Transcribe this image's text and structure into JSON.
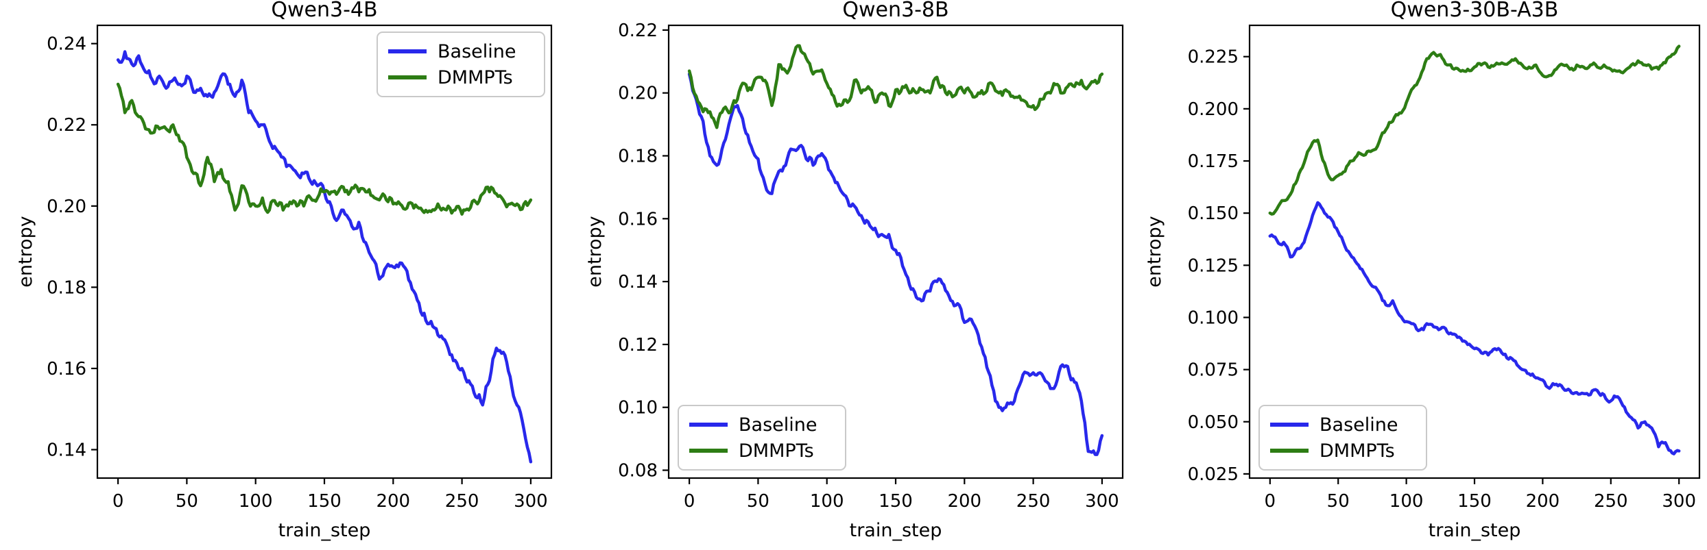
{
  "figure": {
    "background": "#ffffff",
    "description": "Three entropy-vs-train_step line charts comparing Baseline and DMMPTs"
  },
  "colors": {
    "baseline": "#2828eb",
    "dmmpts": "#2d7d14",
    "axis": "#000000",
    "tick_text": "#000000",
    "legend_border": "#c9c9c9",
    "legend_fill": "#ffffff"
  },
  "chart_data": [
    {
      "type": "line",
      "title": "Qwen3-4B",
      "xlabel": "train_step",
      "ylabel": "entropy",
      "grid": false,
      "legend_position": "top-right",
      "xlim": [
        -15,
        315
      ],
      "ylim": [
        0.133,
        0.2445
      ],
      "xticks": [
        0,
        50,
        100,
        150,
        200,
        250,
        300
      ],
      "yticks": [
        "0.14",
        "0.16",
        "0.18",
        "0.20",
        "0.22",
        "0.24"
      ],
      "x_start": 0,
      "x_step": 5,
      "series": [
        {
          "name": "Baseline",
          "color_key": "baseline",
          "values": [
            0.236,
            0.238,
            0.235,
            0.237,
            0.233,
            0.231,
            0.232,
            0.229,
            0.231,
            0.23,
            0.232,
            0.228,
            0.229,
            0.227,
            0.228,
            0.232,
            0.23,
            0.227,
            0.231,
            0.223,
            0.221,
            0.22,
            0.216,
            0.214,
            0.212,
            0.21,
            0.208,
            0.208,
            0.206,
            0.205,
            0.2035,
            0.2,
            0.197,
            0.198,
            0.195,
            0.196,
            0.191,
            0.187,
            0.182,
            0.185,
            0.185,
            0.186,
            0.184,
            0.179,
            0.174,
            0.171,
            0.17,
            0.168,
            0.165,
            0.162,
            0.16,
            0.157,
            0.153,
            0.151,
            0.157,
            0.165,
            0.164,
            0.158,
            0.151,
            0.145,
            0.137
          ]
        },
        {
          "name": "DMMPTs",
          "color_key": "dmmpts",
          "values": [
            0.23,
            0.223,
            0.226,
            0.222,
            0.219,
            0.218,
            0.219,
            0.219,
            0.22,
            0.216,
            0.212,
            0.208,
            0.205,
            0.212,
            0.206,
            0.209,
            0.206,
            0.199,
            0.205,
            0.201,
            0.2,
            0.202,
            0.199,
            0.2005,
            0.199,
            0.201,
            0.2,
            0.2,
            0.202,
            0.202,
            0.2035,
            0.2035,
            0.2035,
            0.2035,
            0.2045,
            0.2035,
            0.2035,
            0.2025,
            0.2015,
            0.2015,
            0.2005,
            0.2005,
            0.1995,
            0.1995,
            0.1995,
            0.1985,
            0.199,
            0.199,
            0.2,
            0.199,
            0.198,
            0.199,
            0.201,
            0.203,
            0.2035,
            0.203,
            0.2015,
            0.2005,
            0.2005,
            0.2005,
            0.2015
          ]
        }
      ]
    },
    {
      "type": "line",
      "title": "Qwen3-8B",
      "xlabel": "train_step",
      "ylabel": "entropy",
      "grid": false,
      "legend_position": "bottom-left",
      "xlim": [
        -15,
        315
      ],
      "ylim": [
        0.0775,
        0.2215
      ],
      "xticks": [
        0,
        50,
        100,
        150,
        200,
        250,
        300
      ],
      "yticks": [
        "0.08",
        "0.10",
        "0.12",
        "0.14",
        "0.16",
        "0.18",
        "0.20",
        "0.22"
      ],
      "x_start": 0,
      "x_step": 5,
      "series": [
        {
          "name": "Baseline",
          "color_key": "baseline",
          "values": [
            0.206,
            0.198,
            0.191,
            0.18,
            0.177,
            0.184,
            0.192,
            0.196,
            0.189,
            0.183,
            0.179,
            0.171,
            0.168,
            0.175,
            0.177,
            0.182,
            0.183,
            0.179,
            0.177,
            0.18,
            0.178,
            0.173,
            0.169,
            0.166,
            0.164,
            0.161,
            0.159,
            0.157,
            0.155,
            0.155,
            0.15,
            0.145,
            0.139,
            0.135,
            0.134,
            0.137,
            0.14,
            0.139,
            0.134,
            0.133,
            0.127,
            0.128,
            0.123,
            0.116,
            0.107,
            0.1,
            0.1,
            0.101,
            0.107,
            0.111,
            0.111,
            0.111,
            0.108,
            0.106,
            0.113,
            0.113,
            0.108,
            0.102,
            0.086,
            0.085,
            0.091
          ]
        },
        {
          "name": "DMMPTs",
          "color_key": "dmmpts",
          "values": [
            0.207,
            0.199,
            0.194,
            0.194,
            0.189,
            0.195,
            0.194,
            0.198,
            0.203,
            0.201,
            0.205,
            0.204,
            0.196,
            0.209,
            0.207,
            0.211,
            0.215,
            0.211,
            0.206,
            0.207,
            0.203,
            0.199,
            0.196,
            0.197,
            0.204,
            0.2,
            0.202,
            0.197,
            0.2,
            0.196,
            0.201,
            0.202,
            0.2,
            0.2,
            0.201,
            0.2,
            0.205,
            0.202,
            0.2,
            0.201,
            0.2,
            0.2,
            0.2,
            0.2,
            0.203,
            0.2,
            0.201,
            0.199,
            0.199,
            0.197,
            0.196,
            0.198,
            0.2,
            0.203,
            0.2,
            0.202,
            0.202,
            0.204,
            0.202,
            0.204,
            0.206
          ]
        }
      ]
    },
    {
      "type": "line",
      "title": "Qwen3-30B-A3B",
      "xlabel": "train_step",
      "ylabel": "entropy",
      "grid": false,
      "legend_position": "bottom-left",
      "xlim": [
        -15,
        315
      ],
      "ylim": [
        0.023,
        0.24
      ],
      "xticks": [
        0,
        50,
        100,
        150,
        200,
        250,
        300
      ],
      "yticks": [
        "0.025",
        "0.050",
        "0.075",
        "0.100",
        "0.125",
        "0.150",
        "0.175",
        "0.200",
        "0.225"
      ],
      "x_start": 0,
      "x_step": 5,
      "series": [
        {
          "name": "Baseline",
          "color_key": "baseline",
          "values": [
            0.139,
            0.137,
            0.136,
            0.129,
            0.133,
            0.136,
            0.146,
            0.155,
            0.15,
            0.147,
            0.141,
            0.134,
            0.129,
            0.125,
            0.12,
            0.115,
            0.112,
            0.106,
            0.108,
            0.101,
            0.098,
            0.097,
            0.094,
            0.097,
            0.0955,
            0.0945,
            0.093,
            0.092,
            0.09,
            0.087,
            0.085,
            0.083,
            0.082,
            0.085,
            0.083,
            0.08,
            0.079,
            0.075,
            0.073,
            0.071,
            0.07,
            0.066,
            0.068,
            0.066,
            0.065,
            0.064,
            0.0635,
            0.063,
            0.065,
            0.063,
            0.06,
            0.062,
            0.057,
            0.052,
            0.047,
            0.05,
            0.047,
            0.038,
            0.04,
            0.035,
            0.036
          ]
        },
        {
          "name": "DMMPTs",
          "color_key": "dmmpts",
          "values": [
            0.15,
            0.152,
            0.156,
            0.159,
            0.166,
            0.174,
            0.182,
            0.185,
            0.174,
            0.166,
            0.168,
            0.17,
            0.175,
            0.179,
            0.178,
            0.18,
            0.184,
            0.19,
            0.194,
            0.198,
            0.203,
            0.21,
            0.215,
            0.224,
            0.227,
            0.226,
            0.221,
            0.219,
            0.218,
            0.219,
            0.22,
            0.221,
            0.22,
            0.221,
            0.222,
            0.222,
            0.224,
            0.221,
            0.22,
            0.221,
            0.216,
            0.216,
            0.219,
            0.221,
            0.219,
            0.221,
            0.22,
            0.221,
            0.22,
            0.221,
            0.219,
            0.218,
            0.218,
            0.221,
            0.223,
            0.221,
            0.219,
            0.219,
            0.222,
            0.226,
            0.23
          ]
        }
      ]
    }
  ]
}
